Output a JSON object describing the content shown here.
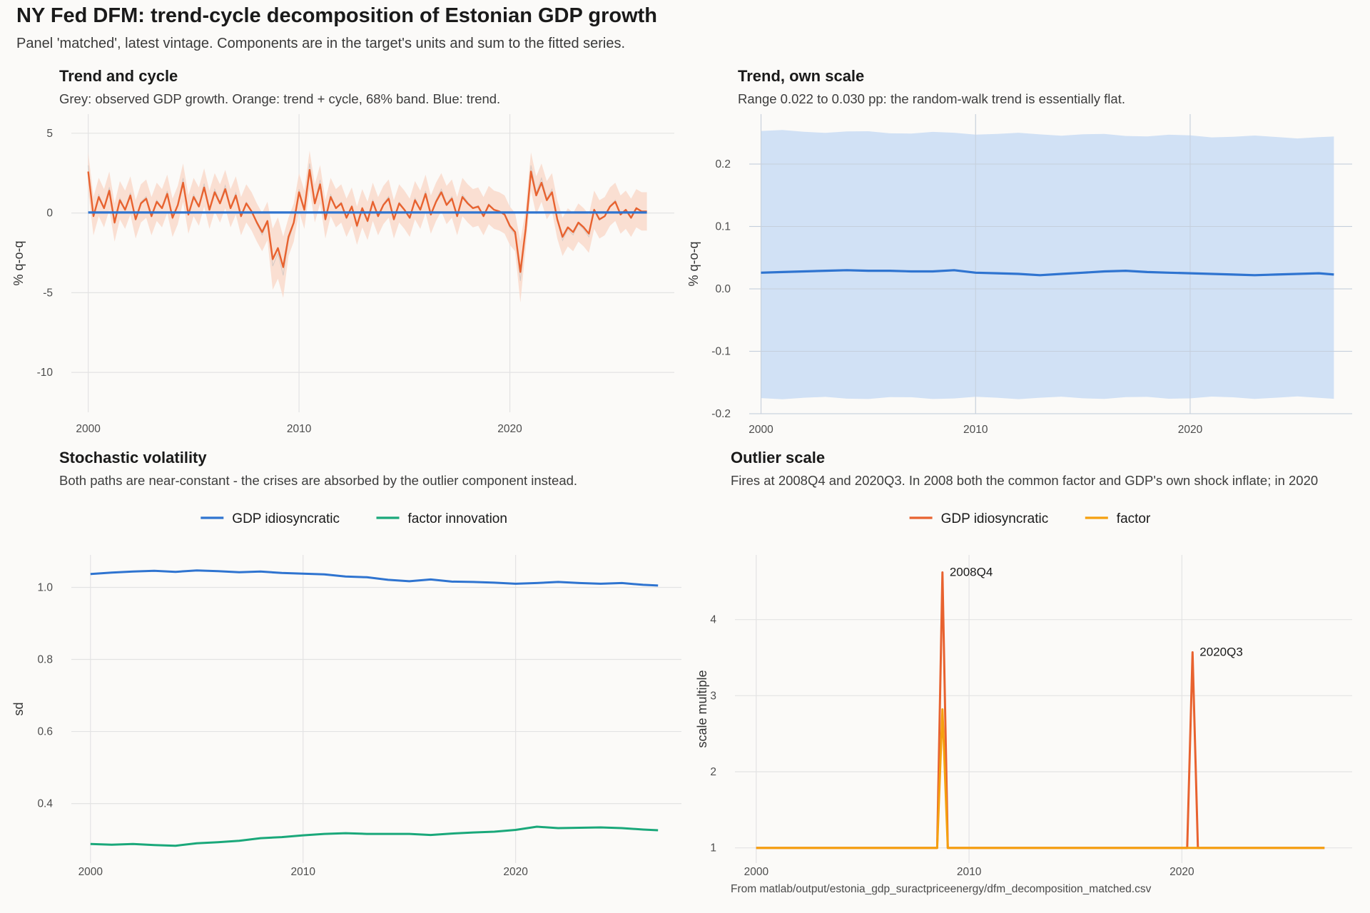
{
  "page": {
    "title": "NY Fed DFM: trend-cycle decomposition of Estonian GDP growth",
    "subtitle": "Panel 'matched', latest vintage. Components are in the target's units and sum to the fitted series.",
    "caption": "From matlab/output/estonia_gdp_suractpriceenergy/dfm_decomposition_matched.csv"
  },
  "colors": {
    "observed": "#bdbdbd",
    "trend_cycle": "#e8622f",
    "band_trend_cycle": "#f9d9cb",
    "trend": "#2f74d0",
    "band_trend": "#d1e1f5",
    "gdp_idiosyncratic_vol": "#2f74d0",
    "factor_innovation": "#1aa87a",
    "outlier_gdp": "#e8622f",
    "outlier_factor": "#f5a00f",
    "grid": "#e3e3e3"
  },
  "chart_data": [
    {
      "id": "trend-and-cycle",
      "type": "line",
      "title": "Trend and cycle",
      "subtitle": "Grey: observed GDP growth. Orange: trend + cycle, 68% band. Blue: trend.",
      "xlabel": "",
      "ylabel": "% q-o-q",
      "xlim": [
        1999.2,
        2027.8
      ],
      "ylim": [
        -12.5,
        6.2
      ],
      "xticks": [
        2000,
        2010,
        2020
      ],
      "yticks": [
        5,
        0,
        -5,
        -10
      ],
      "grid": true,
      "series": [
        {
          "role": "trend_cycle",
          "x": [
            2000.0,
            2000.25,
            2000.5,
            2000.75,
            2001.0,
            2001.25,
            2001.5,
            2001.75,
            2002.0,
            2002.25,
            2002.5,
            2002.75,
            2003.0,
            2003.25,
            2003.5,
            2003.75,
            2004.0,
            2004.25,
            2004.5,
            2004.75,
            2005.0,
            2005.25,
            2005.5,
            2005.75,
            2006.0,
            2006.25,
            2006.5,
            2006.75,
            2007.0,
            2007.25,
            2007.5,
            2007.75,
            2008.0,
            2008.25,
            2008.5,
            2008.75,
            2009.0,
            2009.25,
            2009.5,
            2009.75,
            2010.0,
            2010.25,
            2010.5,
            2010.75,
            2011.0,
            2011.25,
            2011.5,
            2011.75,
            2012.0,
            2012.25,
            2012.5,
            2012.75,
            2013.0,
            2013.25,
            2013.5,
            2013.75,
            2014.0,
            2014.25,
            2014.5,
            2014.75,
            2015.0,
            2015.25,
            2015.5,
            2015.75,
            2016.0,
            2016.25,
            2016.5,
            2016.75,
            2017.0,
            2017.25,
            2017.5,
            2017.75,
            2018.0,
            2018.25,
            2018.5,
            2018.75,
            2019.0,
            2019.25,
            2019.5,
            2019.75,
            2020.0,
            2020.25,
            2020.5,
            2020.75,
            2021.0,
            2021.25,
            2021.5,
            2021.75,
            2022.0,
            2022.25,
            2022.5,
            2022.75,
            2023.0,
            2023.25,
            2023.5,
            2023.75,
            2024.0,
            2024.25,
            2024.5,
            2024.75,
            2025.0,
            2025.25,
            2025.5,
            2025.75,
            2026.0,
            2026.25,
            2026.5
          ],
          "y": [
            2.6,
            -0.2,
            1.0,
            0.3,
            1.4,
            -0.6,
            0.8,
            0.2,
            1.1,
            -0.4,
            0.6,
            0.9,
            -0.2,
            0.7,
            0.3,
            1.2,
            -0.3,
            0.5,
            1.9,
            -0.1,
            1.0,
            0.4,
            1.6,
            0.2,
            1.3,
            0.6,
            1.5,
            0.3,
            1.1,
            -0.2,
            0.6,
            0.1,
            -0.6,
            -1.2,
            -0.5,
            -2.9,
            -2.2,
            -3.4,
            -1.5,
            -0.6,
            1.3,
            0.2,
            2.7,
            0.6,
            1.8,
            -0.4,
            1.0,
            0.3,
            0.6,
            -0.3,
            0.4,
            -0.8,
            0.3,
            -0.5,
            0.7,
            -0.2,
            0.5,
            0.9,
            -0.4,
            0.6,
            0.2,
            -0.3,
            0.8,
            0.2,
            1.2,
            -0.1,
            0.7,
            1.3,
            0.5,
            0.9,
            -0.2,
            1.0,
            0.6,
            0.3,
            0.4,
            -0.2,
            0.5,
            0.2,
            0.1,
            -0.1,
            -0.8,
            -1.2,
            -3.7,
            -1.0,
            2.6,
            1.1,
            1.9,
            0.8,
            1.3,
            -0.4,
            -1.5,
            -0.9,
            -1.2,
            -0.6,
            -0.9,
            -1.3,
            0.2,
            -0.4,
            -0.2,
            0.4,
            0.7,
            -0.1,
            0.2,
            -0.3,
            0.3,
            0.1,
            0.1
          ]
        },
        {
          "role": "trend",
          "x": [
            2000.0,
            2026.5
          ],
          "y": [
            0.03,
            0.03
          ]
        }
      ],
      "band_half_width": 1.2
    },
    {
      "id": "trend-own-scale",
      "type": "line",
      "title": "Trend, own scale",
      "subtitle": "Range 0.022 to 0.030 pp: the random-walk trend is essentially flat.",
      "xlabel": "",
      "ylabel": "% q-o-q",
      "xlim": [
        1999.45,
        2027.55
      ],
      "ylim": [
        -0.2,
        0.28
      ],
      "xticks": [
        2000,
        2010,
        2020
      ],
      "yticks": [
        0.2,
        0.1,
        0.0,
        -0.1,
        -0.2
      ],
      "ytick_labels": [
        "0.2",
        "0.1",
        "0.0",
        "-0.1",
        "-0.2"
      ],
      "grid": true,
      "series": [
        {
          "role": "trend",
          "x": [
            2000,
            2001,
            2002,
            2003,
            2004,
            2005,
            2006,
            2007,
            2008,
            2009,
            2010,
            2011,
            2012,
            2013,
            2014,
            2015,
            2016,
            2017,
            2018,
            2019,
            2020,
            2021,
            2022,
            2023,
            2024,
            2025,
            2026,
            2026.7
          ],
          "y": [
            0.026,
            0.027,
            0.028,
            0.029,
            0.03,
            0.029,
            0.029,
            0.028,
            0.028,
            0.03,
            0.026,
            0.025,
            0.024,
            0.022,
            0.024,
            0.026,
            0.028,
            0.029,
            0.027,
            0.026,
            0.025,
            0.024,
            0.023,
            0.022,
            0.023,
            0.024,
            0.025,
            0.023
          ]
        }
      ],
      "band": {
        "lower": -0.175,
        "upper": 0.253
      }
    },
    {
      "id": "stochastic-volatility",
      "type": "line",
      "title": "Stochastic volatility",
      "subtitle": "Both paths are near-constant - the crises are absorbed by the outlier component instead.",
      "xlabel": "",
      "ylabel": "sd",
      "xlim": [
        1999.1,
        2027.8
      ],
      "ylim": [
        0.235,
        1.09
      ],
      "xticks": [
        2000,
        2010,
        2020
      ],
      "yticks": [
        1.0,
        0.8,
        0.6,
        0.4
      ],
      "ytick_labels": [
        "1.0",
        "0.8",
        "0.6",
        "0.4"
      ],
      "grid": true,
      "legend": {
        "position": "top",
        "entries": [
          {
            "label": "GDP idiosyncratic",
            "color_key": "gdp_idiosyncratic_vol"
          },
          {
            "label": "factor innovation",
            "color_key": "factor_innovation"
          }
        ]
      },
      "series": [
        {
          "name": "GDP idiosyncratic",
          "x": [
            2000,
            2001,
            2002,
            2003,
            2004,
            2005,
            2006,
            2007,
            2008,
            2009,
            2010,
            2011,
            2012,
            2013,
            2014,
            2015,
            2016,
            2017,
            2018,
            2019,
            2020,
            2021,
            2022,
            2023,
            2024,
            2025,
            2026,
            2026.7
          ],
          "y": [
            1.037,
            1.041,
            1.044,
            1.046,
            1.043,
            1.047,
            1.045,
            1.042,
            1.044,
            1.04,
            1.038,
            1.036,
            1.03,
            1.028,
            1.021,
            1.017,
            1.022,
            1.016,
            1.015,
            1.013,
            1.01,
            1.012,
            1.015,
            1.012,
            1.01,
            1.012,
            1.007,
            1.005
          ]
        },
        {
          "name": "factor innovation",
          "x": [
            2000,
            2001,
            2002,
            2003,
            2004,
            2005,
            2006,
            2007,
            2008,
            2009,
            2010,
            2011,
            2012,
            2013,
            2014,
            2015,
            2016,
            2017,
            2018,
            2019,
            2020,
            2021,
            2022,
            2023,
            2024,
            2025,
            2026,
            2026.7
          ],
          "y": [
            0.288,
            0.286,
            0.288,
            0.285,
            0.283,
            0.29,
            0.293,
            0.297,
            0.304,
            0.307,
            0.312,
            0.316,
            0.318,
            0.316,
            0.316,
            0.316,
            0.313,
            0.317,
            0.32,
            0.322,
            0.327,
            0.336,
            0.332,
            0.333,
            0.334,
            0.332,
            0.328,
            0.326
          ]
        }
      ]
    },
    {
      "id": "outlier-scale",
      "type": "line",
      "title": "Outlier scale",
      "subtitle": "Fires at 2008Q4 and 2020Q3. In 2008 both the common factor and GDP's own shock inflate; in 2020",
      "xlabel": "",
      "ylabel": "scale multiple",
      "xlim": [
        1999.0,
        2028.0
      ],
      "ylim": [
        0.8,
        4.85
      ],
      "xticks": [
        2000,
        2010,
        2020
      ],
      "yticks": [
        4,
        3,
        2,
        1
      ],
      "grid": true,
      "legend": {
        "position": "top",
        "entries": [
          {
            "label": "GDP idiosyncratic",
            "color_key": "outlier_gdp"
          },
          {
            "label": "factor",
            "color_key": "outlier_factor"
          }
        ]
      },
      "series": [
        {
          "name": "GDP idiosyncratic",
          "x": [
            2000,
            2008.5,
            2008.75,
            2009.0,
            2020.25,
            2020.5,
            2020.75,
            2026.7
          ],
          "y": [
            1,
            1,
            4.62,
            1,
            1,
            3.57,
            1,
            1
          ]
        },
        {
          "name": "factor",
          "x": [
            2000,
            2008.5,
            2008.75,
            2009.0,
            2026.7
          ],
          "y": [
            1,
            1,
            2.82,
            1,
            1
          ]
        }
      ],
      "annotations": [
        {
          "x": 2008.75,
          "y": 4.62,
          "label": "2008Q4"
        },
        {
          "x": 2020.5,
          "y": 3.57,
          "label": "2020Q3"
        }
      ]
    }
  ]
}
